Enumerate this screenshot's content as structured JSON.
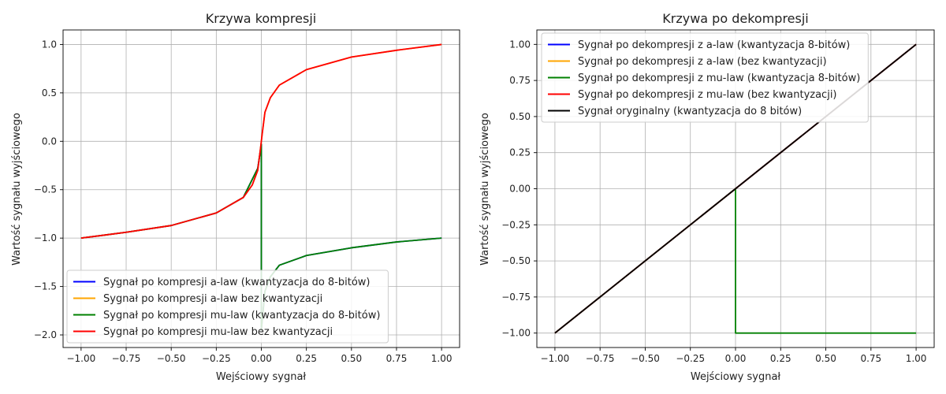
{
  "chart_data": [
    {
      "type": "line",
      "title": "Krzywa kompresji",
      "xlabel": "Wejściowy sygnał",
      "ylabel": "Wartość sygnału wyjściowego",
      "xlim": [
        -1.1,
        1.1
      ],
      "ylim": [
        -2.13,
        1.15
      ],
      "xticks": [
        -1.0,
        -0.75,
        -0.5,
        -0.25,
        0.0,
        0.25,
        0.5,
        0.75,
        1.0
      ],
      "xtick_labels": [
        "−1.00",
        "−0.75",
        "−0.50",
        "−0.25",
        "0.00",
        "0.25",
        "0.50",
        "0.75",
        "1.00"
      ],
      "yticks": [
        -2.0,
        -1.5,
        -1.0,
        -0.5,
        0.0,
        0.5,
        1.0
      ],
      "ytick_labels": [
        "−2.0",
        "−1.5",
        "−1.0",
        "−0.5",
        "0.0",
        "0.5",
        "1.0"
      ],
      "grid": true,
      "legend_position": "lower-right",
      "series": [
        {
          "name": "Sygnał po kompresji a-law (kwantyzacja do 8-bitów)",
          "color": "#0000ff",
          "x": [
            -1.0,
            -0.75,
            -0.5,
            -0.25,
            -0.1,
            -0.02,
            0.0,
            0.0,
            0.02,
            0.05,
            0.1,
            0.25,
            0.5,
            0.75,
            1.0
          ],
          "y": [
            -1.0,
            -0.94,
            -0.87,
            -0.74,
            -0.58,
            -0.28,
            -0.03,
            -1.95,
            -1.55,
            -1.4,
            -1.28,
            -1.18,
            -1.1,
            -1.04,
            -1.0
          ]
        },
        {
          "name": "Sygnał po kompresji a-law bez kwantyzacji",
          "color": "#ffa500",
          "x": [
            -1.0,
            -0.75,
            -0.5,
            -0.25,
            -0.1,
            -0.05,
            -0.02,
            -0.005,
            0.0,
            0.005,
            0.02,
            0.05,
            0.1,
            0.25,
            0.5,
            0.75,
            1.0
          ],
          "y": [
            -1.0,
            -0.94,
            -0.87,
            -0.74,
            -0.58,
            -0.45,
            -0.3,
            -0.08,
            0.0,
            0.08,
            0.3,
            0.45,
            0.58,
            0.74,
            0.87,
            0.94,
            1.0
          ]
        },
        {
          "name": "Sygnał po kompresji mu-law (kwantyzacja do 8-bitów)",
          "color": "#008000",
          "x": [
            -1.0,
            -0.75,
            -0.5,
            -0.25,
            -0.1,
            -0.02,
            0.0,
            0.0,
            0.02,
            0.05,
            0.1,
            0.25,
            0.5,
            0.75,
            1.0
          ],
          "y": [
            -1.0,
            -0.94,
            -0.87,
            -0.74,
            -0.58,
            -0.28,
            -0.03,
            -1.95,
            -1.55,
            -1.4,
            -1.28,
            -1.18,
            -1.1,
            -1.04,
            -1.0
          ]
        },
        {
          "name": "Sygnał po kompresji mu-law bez kwantyzacji",
          "color": "#ff0000",
          "x": [
            -1.0,
            -0.75,
            -0.5,
            -0.25,
            -0.1,
            -0.05,
            -0.02,
            -0.005,
            0.0,
            0.005,
            0.02,
            0.05,
            0.1,
            0.25,
            0.5,
            0.75,
            1.0
          ],
          "y": [
            -1.0,
            -0.94,
            -0.87,
            -0.74,
            -0.58,
            -0.45,
            -0.3,
            -0.08,
            0.0,
            0.08,
            0.3,
            0.45,
            0.58,
            0.74,
            0.87,
            0.94,
            1.0
          ]
        }
      ]
    },
    {
      "type": "line",
      "title": "Krzywa po dekompresji",
      "xlabel": "Wejściowy sygnał",
      "ylabel": "Wartość sygnału wyjściowego",
      "xlim": [
        -1.1,
        1.1
      ],
      "ylim": [
        -1.1,
        1.1
      ],
      "xticks": [
        -1.0,
        -0.75,
        -0.5,
        -0.25,
        0.0,
        0.25,
        0.5,
        0.75,
        1.0
      ],
      "xtick_labels": [
        "−1.00",
        "−0.75",
        "−0.50",
        "−0.25",
        "0.00",
        "0.25",
        "0.50",
        "0.75",
        "1.00"
      ],
      "yticks": [
        -1.0,
        -0.75,
        -0.5,
        -0.25,
        0.0,
        0.25,
        0.5,
        0.75,
        1.0
      ],
      "ytick_labels": [
        "−1.00",
        "−0.75",
        "−0.50",
        "−0.25",
        "0.00",
        "0.25",
        "0.50",
        "0.75",
        "1.00"
      ],
      "grid": true,
      "legend_position": "upper-left",
      "series": [
        {
          "name": "Sygnał po dekompresji z a-law (kwantyzacja 8-bitów)",
          "color": "#0000ff",
          "x": [
            -1.0,
            -0.5,
            0.0,
            0.5,
            1.0
          ],
          "y": [
            -1.0,
            -0.5,
            0.0,
            0.5,
            1.0
          ]
        },
        {
          "name": "Sygnał po dekompresji z a-law (bez kwantyzacji)",
          "color": "#ffa500",
          "x": [
            -1.0,
            -0.5,
            0.0,
            0.5,
            1.0
          ],
          "y": [
            -1.0,
            -0.5,
            0.0,
            0.5,
            1.0
          ]
        },
        {
          "name": "Sygnał po dekompresji z mu-law (kwantyzacja 8-bitów)",
          "color": "#008000",
          "x": [
            -1.0,
            -0.5,
            0.0,
            0.0,
            0.5,
            1.0
          ],
          "y": [
            -1.0,
            -0.5,
            0.0,
            -1.0,
            -1.0,
            -1.0
          ]
        },
        {
          "name": "Sygnał po dekompresji z mu-law (bez kwantyzacji)",
          "color": "#ff0000",
          "x": [
            -1.0,
            -0.5,
            0.0,
            0.5,
            1.0
          ],
          "y": [
            -1.0,
            -0.5,
            0.0,
            0.5,
            1.0
          ]
        },
        {
          "name": "Sygnał oryginalny (kwantyzacja do 8 bitów)",
          "color": "#000000",
          "x": [
            -1.0,
            -0.5,
            0.0,
            0.5,
            1.0
          ],
          "y": [
            -1.0,
            -0.5,
            0.0,
            0.5,
            1.0
          ]
        }
      ]
    }
  ]
}
